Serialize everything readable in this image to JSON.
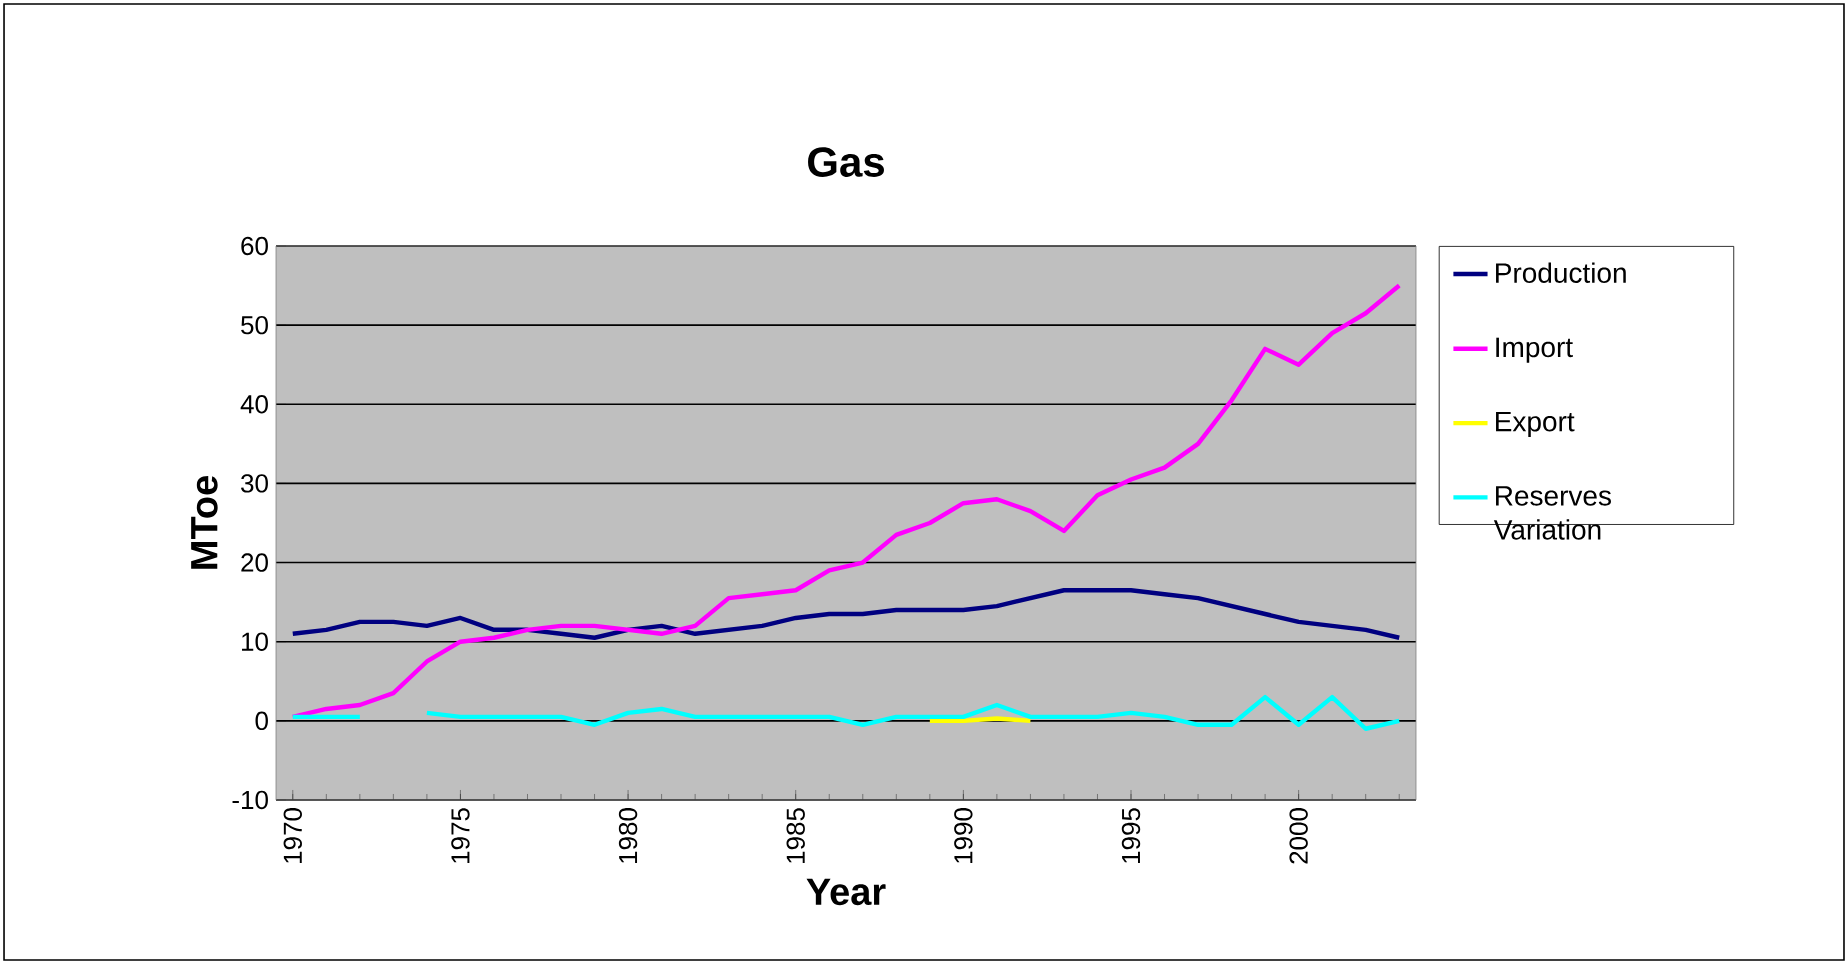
{
  "chart_data": {
    "type": "line",
    "title": "Gas",
    "xlabel": "Year",
    "ylabel": "MToe",
    "x": [
      1970,
      1971,
      1972,
      1973,
      1974,
      1975,
      1976,
      1977,
      1978,
      1979,
      1980,
      1981,
      1982,
      1983,
      1984,
      1985,
      1986,
      1987,
      1988,
      1989,
      1990,
      1991,
      1992,
      1993,
      1994,
      1995,
      1996,
      1997,
      1998,
      1999,
      2000,
      2001,
      2002,
      2003
    ],
    "series": [
      {
        "name": "Production",
        "color": "#000080",
        "values": [
          11,
          11.5,
          12.5,
          12.5,
          12,
          13,
          11.5,
          11.5,
          11,
          10.5,
          11.5,
          12,
          11,
          11.5,
          12,
          13,
          13.5,
          13.5,
          14,
          14,
          14,
          14.5,
          15.5,
          16.5,
          16.5,
          16.5,
          16,
          15.5,
          14.5,
          13.5,
          12.5,
          12,
          11.5,
          10.5
        ]
      },
      {
        "name": "Import",
        "color": "#ff00ff",
        "values": [
          0.5,
          1.5,
          2,
          3.5,
          7.5,
          10,
          10.5,
          11.5,
          12,
          12,
          11.5,
          11,
          12,
          15.5,
          16,
          16.5,
          19,
          20,
          23.5,
          25,
          27.5,
          28,
          26.5,
          24,
          28.5,
          30.5,
          32,
          35,
          40.5,
          47,
          45,
          49,
          51.5,
          55
        ]
      },
      {
        "name": "Export",
        "color": "#ffff00",
        "values": [
          null,
          null,
          null,
          null,
          null,
          null,
          null,
          null,
          null,
          null,
          null,
          null,
          null,
          null,
          null,
          null,
          null,
          null,
          null,
          0,
          0,
          0.3,
          0,
          null,
          null,
          null,
          null,
          null,
          null,
          null,
          null,
          null,
          null,
          null
        ]
      },
      {
        "name": "Reserves Variation",
        "color": "#00ffff",
        "values": [
          0.5,
          0.5,
          0.5,
          null,
          1,
          0.5,
          0.5,
          0.5,
          0.5,
          -0.5,
          1,
          1.5,
          0.5,
          0.5,
          0.5,
          0.5,
          0.5,
          -0.5,
          0.5,
          0.5,
          0.5,
          2,
          0.5,
          0.5,
          0.5,
          1,
          0.5,
          -0.5,
          -0.5,
          3,
          -0.5,
          3,
          -1,
          0
        ]
      }
    ],
    "xlim": [
      1969.5,
      2003.5
    ],
    "ylim": [
      -10,
      60
    ],
    "xticks": [
      1970,
      1975,
      1980,
      1985,
      1990,
      1995,
      2000
    ],
    "yticks": [
      -10,
      0,
      10,
      20,
      30,
      40,
      50,
      60
    ],
    "grid": "y",
    "legend": "right",
    "marker": "none",
    "line_style": "solid"
  }
}
